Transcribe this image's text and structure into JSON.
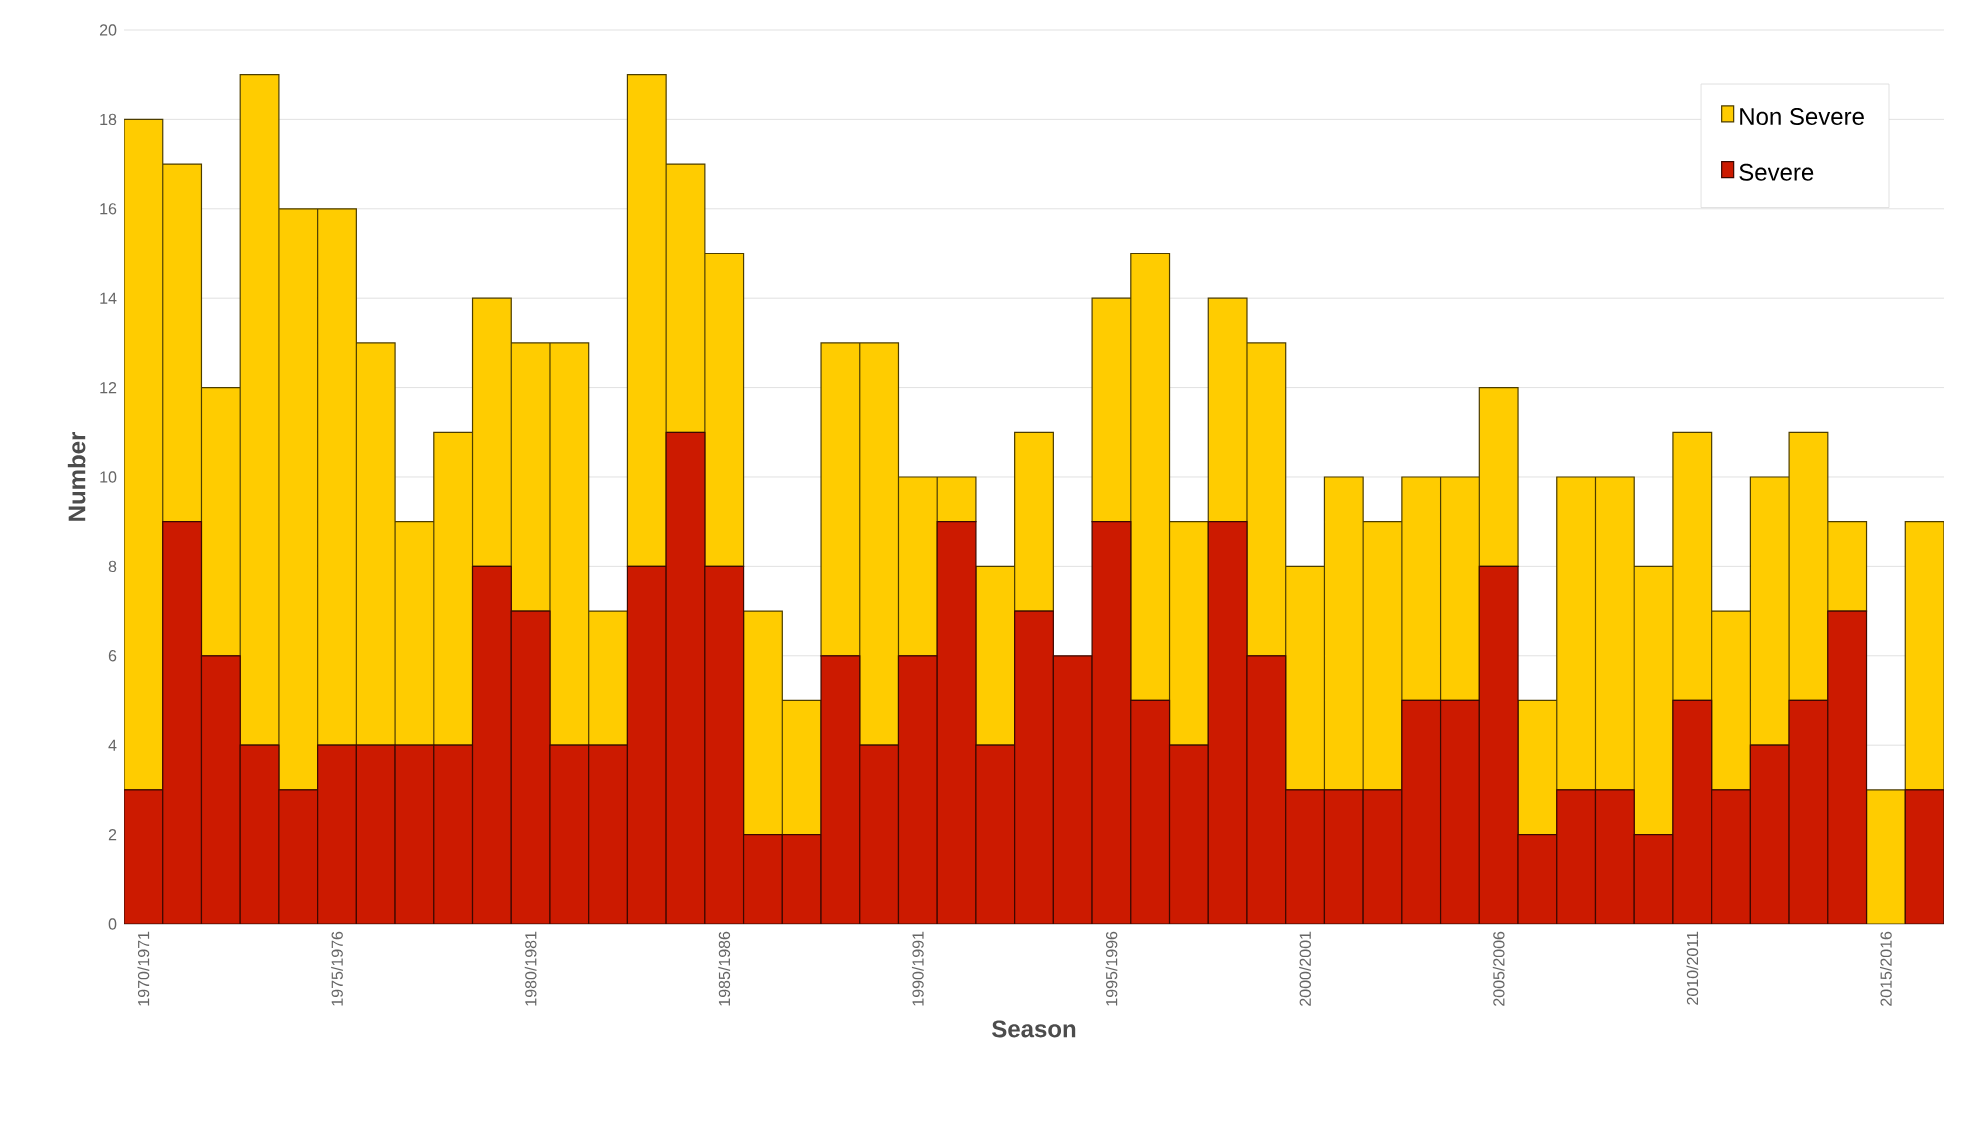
{
  "chart_data": {
    "type": "bar",
    "stacked": true,
    "xlabel": "Season",
    "ylabel": "Number",
    "categories": [
      "1970/1971",
      null,
      null,
      null,
      null,
      "1975/1976",
      null,
      null,
      null,
      null,
      "1980/1981",
      null,
      null,
      null,
      null,
      "1985/1986",
      null,
      null,
      null,
      null,
      "1990/1991",
      null,
      null,
      null,
      null,
      "1995/1996",
      null,
      null,
      null,
      null,
      "2000/2001",
      null,
      null,
      null,
      null,
      "2005/2006",
      null,
      null,
      null,
      null,
      "2010/2011",
      null,
      null,
      null,
      null,
      "2015/2016",
      null
    ],
    "series": [
      {
        "name": "Severe",
        "color": "#cc1a00",
        "values": [
          3,
          9,
          6,
          4,
          3,
          4,
          4,
          4,
          4,
          8,
          7,
          4,
          4,
          8,
          11,
          8,
          2,
          2,
          6,
          4,
          6,
          9,
          4,
          7,
          6,
          9,
          5,
          4,
          9,
          6,
          3,
          3,
          3,
          5,
          5,
          8,
          2,
          3,
          3,
          2,
          5,
          3,
          4,
          5,
          7,
          0,
          3
        ]
      },
      {
        "name": "Non Severe",
        "color": "#ffcc00",
        "values": [
          15,
          8,
          6,
          15,
          13,
          12,
          9,
          5,
          7,
          6,
          6,
          9,
          3,
          11,
          6,
          7,
          5,
          3,
          7,
          9,
          4,
          1,
          4,
          4,
          0,
          5,
          10,
          5,
          5,
          7,
          5,
          7,
          6,
          5,
          5,
          4,
          3,
          7,
          7,
          6,
          6,
          4,
          6,
          6,
          2,
          3,
          6
        ]
      }
    ],
    "ylim": [
      0,
      20
    ],
    "yticks": [
      0,
      2,
      4,
      6,
      8,
      10,
      12,
      14,
      16,
      18,
      20
    ],
    "grid": "y",
    "legend": "top right"
  }
}
